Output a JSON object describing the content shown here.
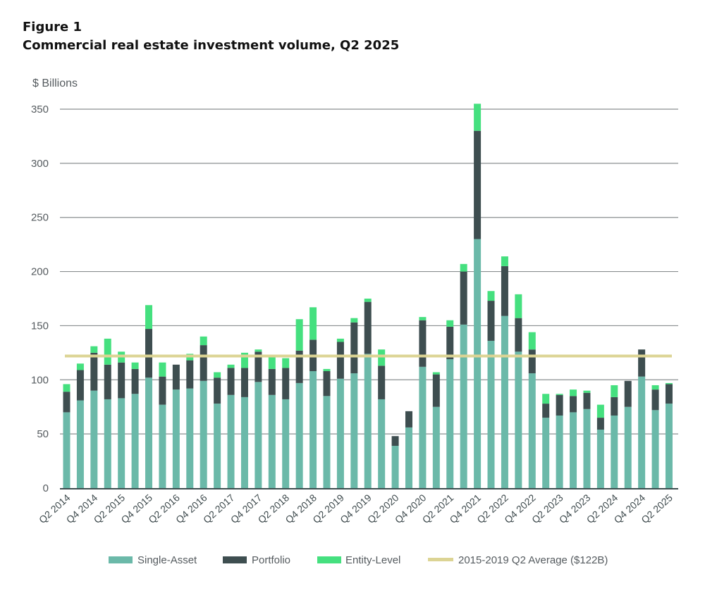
{
  "figure_label": "Figure 1",
  "figure_title": "Commercial real estate investment volume, Q2 2025",
  "colors": {
    "single_asset": "#6bb9a9",
    "portfolio": "#3e4e50",
    "entity_level": "#45e07f",
    "average": "#dcd494",
    "grid": "#8a8f90",
    "axis": "#3e4e50"
  },
  "chart_data": {
    "type": "bar",
    "stacked": true,
    "title": "Commercial real estate investment volume, Q2 2025",
    "ylabel": "$ Billions",
    "xlabel": "",
    "ylim": [
      0,
      350
    ],
    "yticks": [
      0,
      50,
      100,
      150,
      200,
      250,
      300,
      350
    ],
    "grid": true,
    "legend_position": "bottom",
    "categories": [
      "Q2 2014",
      "Q3 2014",
      "Q4 2014",
      "Q1 2015",
      "Q2 2015",
      "Q3 2015",
      "Q4 2015",
      "Q1 2016",
      "Q2 2016",
      "Q3 2016",
      "Q4 2016",
      "Q1 2017",
      "Q2 2017",
      "Q3 2017",
      "Q4 2017",
      "Q1 2018",
      "Q2 2018",
      "Q3 2018",
      "Q4 2018",
      "Q1 2019",
      "Q2 2019",
      "Q3 2019",
      "Q4 2019",
      "Q1 2020",
      "Q2 2020",
      "Q3 2020",
      "Q4 2020",
      "Q1 2021",
      "Q2 2021",
      "Q3 2021",
      "Q4 2021",
      "Q1 2022",
      "Q2 2022",
      "Q3 2022",
      "Q4 2022",
      "Q1 2023",
      "Q2 2023",
      "Q3 2023",
      "Q4 2023",
      "Q1 2024",
      "Q2 2024",
      "Q3 2024",
      "Q4 2024",
      "Q1 2025",
      "Q2 2025"
    ],
    "tick_labels": [
      "Q2 2014",
      "Q4 2014",
      "Q2 2015",
      "Q4 2015",
      "Q2 2016",
      "Q4 2016",
      "Q2 2017",
      "Q4 2017",
      "Q2 2018",
      "Q4 2018",
      "Q2 2019",
      "Q4 2019",
      "Q2 2020",
      "Q4 2020",
      "Q2 2021",
      "Q4 2021",
      "Q2 2022",
      "Q4 2022",
      "Q2 2023",
      "Q4 2023",
      "Q2 2024",
      "Q4 2024",
      "Q2 2025"
    ],
    "series": [
      {
        "name": "Single-Asset",
        "values": [
          70,
          81,
          90,
          82,
          83,
          87,
          102,
          77,
          91,
          92,
          99,
          78,
          86,
          84,
          98,
          86,
          82,
          97,
          108,
          85,
          101,
          106,
          124,
          82,
          39,
          56,
          112,
          75,
          119,
          151,
          230,
          136,
          159,
          126,
          106,
          65,
          67,
          70,
          73,
          54,
          67,
          75,
          103,
          72,
          78
        ]
      },
      {
        "name": "Portfolio",
        "values": [
          19,
          28,
          35,
          32,
          33,
          23,
          45,
          26,
          23,
          26,
          33,
          24,
          25,
          27,
          28,
          24,
          29,
          30,
          29,
          23,
          34,
          47,
          48,
          31,
          9,
          15,
          43,
          30,
          30,
          49,
          100,
          37,
          46,
          31,
          22,
          13,
          19,
          15,
          15,
          11,
          17,
          24,
          25,
          19,
          18
        ]
      },
      {
        "name": "Entity-Level",
        "values": [
          7,
          6,
          6,
          24,
          10,
          6,
          22,
          13,
          0,
          6,
          8,
          5,
          3,
          14,
          2,
          11,
          9,
          29,
          30,
          2,
          3,
          4,
          3,
          15,
          0,
          0,
          3,
          2,
          6,
          7,
          25,
          9,
          9,
          22,
          16,
          9,
          1,
          6,
          2,
          12,
          11,
          0,
          0,
          4,
          1
        ]
      }
    ],
    "reference_line": {
      "name": "2015-2019 Q2 Average ($122B)",
      "value": 122
    }
  }
}
